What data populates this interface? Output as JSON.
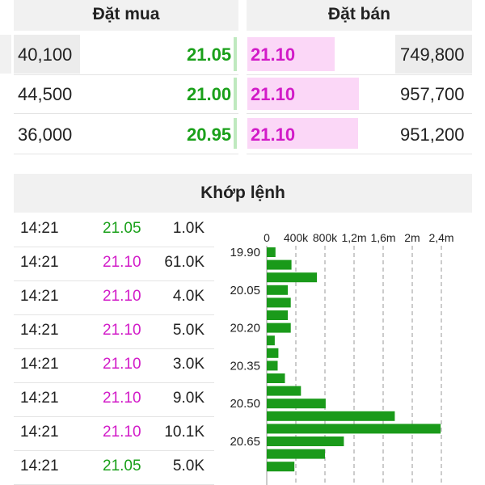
{
  "orderbook": {
    "buy_header": "Đặt mua",
    "sell_header": "Đặt bán",
    "rows": [
      {
        "buy_qty": "40,100",
        "buy_price": "21.05",
        "sell_price": "21.10",
        "sell_qty": "749,800"
      },
      {
        "buy_qty": "44,500",
        "buy_price": "21.00",
        "sell_price": "21.10",
        "sell_qty": "957,700"
      },
      {
        "buy_qty": "36,000",
        "buy_price": "20.95",
        "sell_price": "21.10",
        "sell_qty": "951,200"
      }
    ]
  },
  "match": {
    "title": "Khớp lệnh",
    "trades": [
      {
        "time": "14:21",
        "price": "21.05",
        "volume": "1.0K",
        "color": "#1aa01a"
      },
      {
        "time": "14:21",
        "price": "21.10",
        "volume": "61.0K",
        "color": "#d21bc8"
      },
      {
        "time": "14:21",
        "price": "21.10",
        "volume": "4.0K",
        "color": "#d21bc8"
      },
      {
        "time": "14:21",
        "price": "21.10",
        "volume": "5.0K",
        "color": "#d21bc8"
      },
      {
        "time": "14:21",
        "price": "21.10",
        "volume": "3.0K",
        "color": "#d21bc8"
      },
      {
        "time": "14:21",
        "price": "21.10",
        "volume": "9.0K",
        "color": "#d21bc8"
      },
      {
        "time": "14:21",
        "price": "21.10",
        "volume": "10.1K",
        "color": "#d21bc8"
      },
      {
        "time": "14:21",
        "price": "21.05",
        "volume": "5.0K",
        "color": "#1aa01a"
      }
    ]
  },
  "colors": {
    "buy": "#1aa01a",
    "sell": "#d21bc8",
    "bar": "#1a9a1a"
  },
  "chart_data": {
    "type": "bar",
    "orientation": "horizontal",
    "x_tick_labels": [
      "0",
      "400k",
      "800k",
      "1,2m",
      "1,6m",
      "2m",
      "2,4m"
    ],
    "x_ticks": [
      0,
      400000,
      800000,
      1200000,
      1600000,
      2000000,
      2400000
    ],
    "y_tick_labels": [
      "19.90",
      "20.05",
      "20.20",
      "20.35",
      "20.50",
      "20.65"
    ],
    "categories": [
      "19.90",
      "19.95",
      "20.00",
      "20.05",
      "20.10",
      "20.15",
      "20.20",
      "20.25",
      "20.30",
      "20.35",
      "20.40",
      "20.45",
      "20.50",
      "20.55",
      "20.60",
      "20.65",
      "20.70",
      "20.75"
    ],
    "values": [
      120000,
      340000,
      690000,
      290000,
      330000,
      290000,
      330000,
      110000,
      160000,
      150000,
      250000,
      470000,
      810000,
      1760000,
      2390000,
      1060000,
      800000,
      380000
    ],
    "xlim": [
      0,
      2500000
    ],
    "grid": "vertical dashed"
  }
}
